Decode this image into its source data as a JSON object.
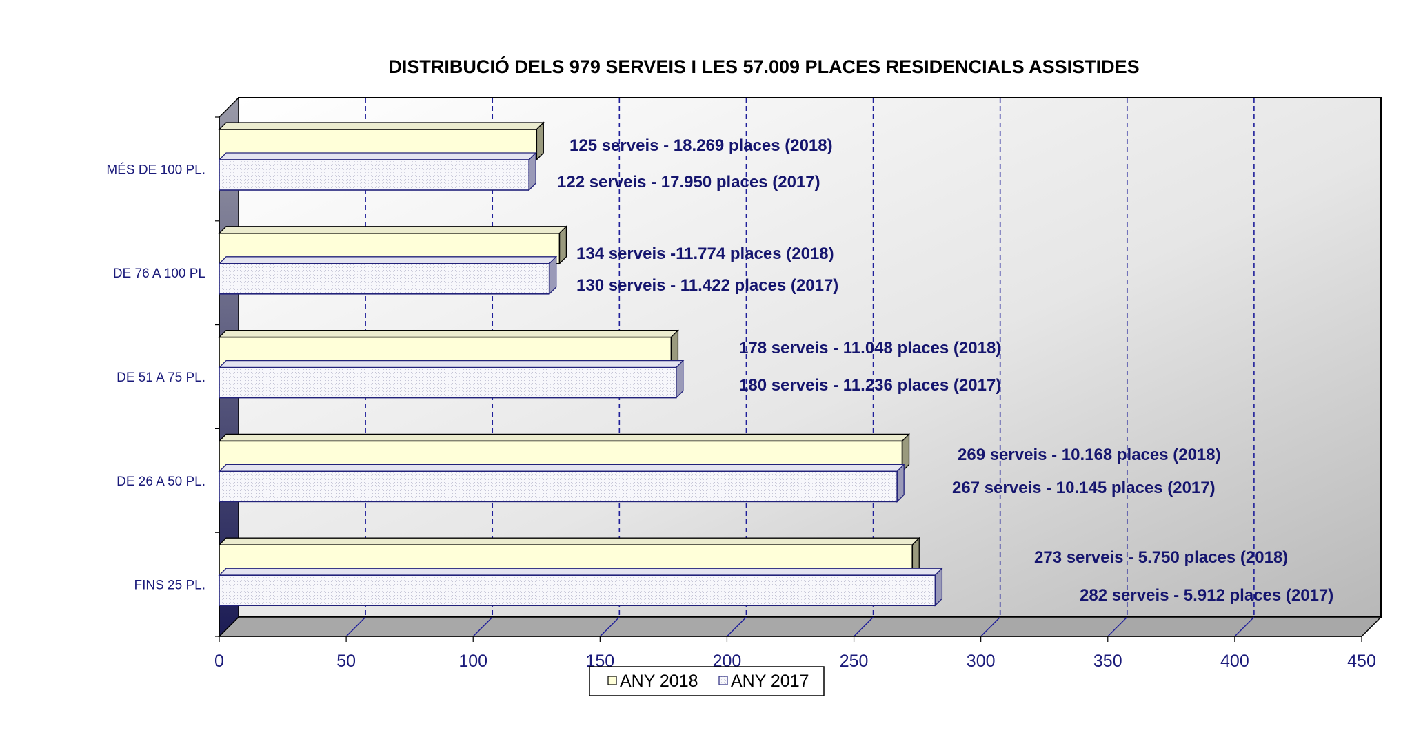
{
  "chart_data": {
    "type": "bar",
    "orientation": "horizontal",
    "title": "DISTRIBUCIÓ DELS 979 SERVEIS I LES 57.009 PLACES RESIDENCIALS ASSISTIDES",
    "categories": [
      "MÉS DE 100 PL.",
      "DE 76 A 100 PL",
      "DE 51 A 75 PL.",
      "DE 26 A 50 PL.",
      "FINS 25 PL."
    ],
    "series": [
      {
        "name": "ANY 2018",
        "color": "#ffffd9",
        "values": [
          125,
          134,
          178,
          269,
          273
        ],
        "labels": [
          "125 serveis  - 18.269 places (2018)",
          "134 serveis -11.774 places (2018)",
          "178 serveis - 11.048 places (2018)",
          "269 serveis -  10.168 places (2018)",
          "273 serveis  -  5.750 places (2018)"
        ]
      },
      {
        "name": "ANY 2017",
        "color": "#f4f4fa",
        "values": [
          122,
          130,
          180,
          267,
          282
        ],
        "labels": [
          "122 serveis  - 17.950 places (2017)",
          "130 serveis -  11.422 places (2017)",
          "180 serveis - 11.236 places (2017)",
          "267 serveis - 10.145 places (2017)",
          "282 serveis  -  5.912 places (2017)"
        ]
      }
    ],
    "xlim": [
      0,
      450
    ],
    "xticks": [
      "0",
      "50",
      "100",
      "150",
      "200",
      "250",
      "300",
      "350",
      "400",
      "450"
    ],
    "grid": true,
    "legend_position": "bottom"
  }
}
